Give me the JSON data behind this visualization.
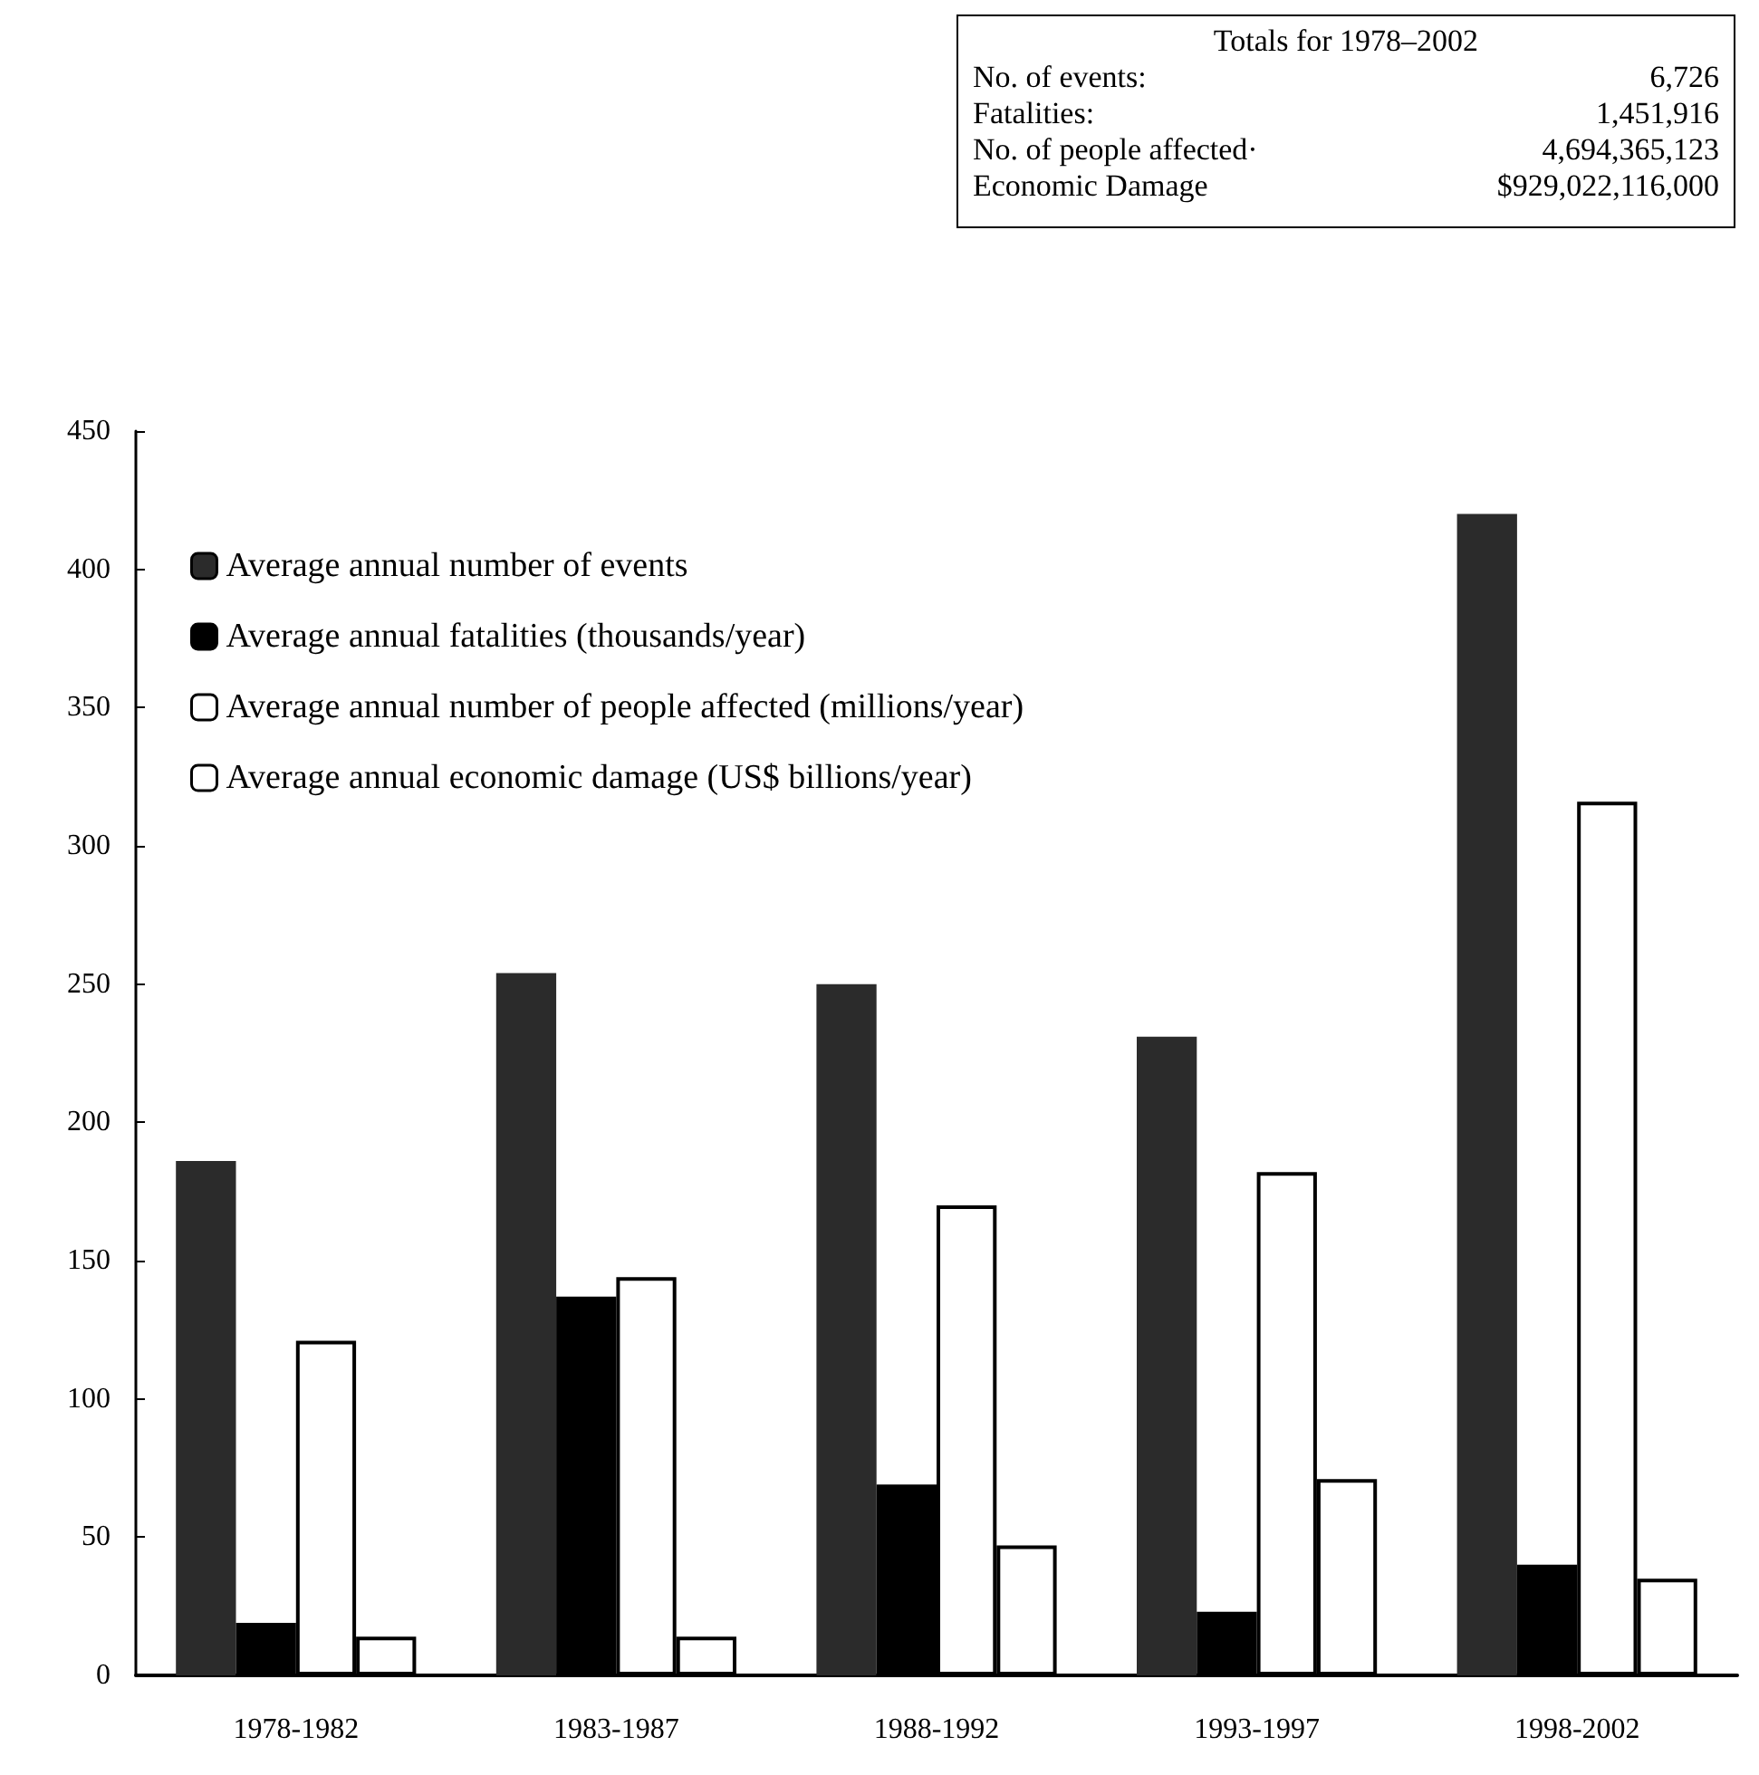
{
  "chart_data": {
    "type": "bar",
    "categories": [
      "1978-1982",
      "1983-1987",
      "1988-1992",
      "1993-1997",
      "1998-2002"
    ],
    "series": [
      {
        "name": "Average annual number of events",
        "color": "#2b2b2b",
        "values": [
          186,
          254,
          250,
          231,
          420
        ]
      },
      {
        "name": "Average annual fatalities (thousands/year)",
        "color": "#000000",
        "values": [
          19,
          137,
          69,
          23,
          40
        ]
      },
      {
        "name": "Average annual number of people affected (millions/year)",
        "color": "#ffffff",
        "values": [
          121,
          144,
          170,
          182,
          316
        ]
      },
      {
        "name": "Average annual economic damage (US$ billions/year)",
        "color": "#ffffff",
        "values": [
          14,
          14,
          47,
          71,
          35
        ]
      }
    ],
    "ylim": [
      0,
      450
    ],
    "yticks": [
      0,
      50,
      100,
      150,
      200,
      250,
      300,
      350,
      400,
      450
    ],
    "grid": false,
    "legend": "top left",
    "annotations": [
      "Totals for 1978–2002",
      "No. of events:",
      "6,726",
      "Fatalities:",
      "1,451,916",
      "No. of people affected·",
      "4,694,365,123",
      "Economic Damage",
      "$929,022,116,000"
    ]
  }
}
